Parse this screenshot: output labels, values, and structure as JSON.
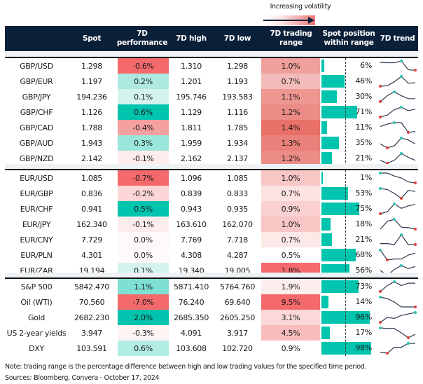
{
  "legend": {
    "label": "Increasing volatility"
  },
  "headers": [
    "",
    "Spot",
    "7D\nperformance",
    "7D high",
    "7D low",
    "7D trading\nrange",
    "Spot position\nwithin range",
    "7D trend"
  ],
  "colors": {
    "header": "#0a1f38",
    "bar": "#00c4ad",
    "max_marker": "#2ec4b0",
    "min_marker": "#e0413a"
  },
  "groups": [
    [
      {
        "name": "GBP/USD",
        "spot": "1.298",
        "perf": "-0.6%",
        "perf_color": "#f46a6c",
        "high": "1.310",
        "low": "1.298",
        "range": "1.0%",
        "range_color": "#f0a09c",
        "pos": 6,
        "pos_label": "6%",
        "trend": [
          0.85,
          0.82,
          0.82,
          1,
          0.1,
          0.05
        ]
      },
      {
        "name": "GBP/EUR",
        "spot": "1.197",
        "perf": "0.2%",
        "perf_color": "#aee9e0",
        "high": "1.201",
        "low": "1.193",
        "range": "0.7%",
        "range_color": "#f3bcba",
        "pos": 46,
        "pos_label": "46%",
        "trend": [
          0,
          0.05,
          0.45,
          1,
          0.3,
          0.35
        ]
      },
      {
        "name": "GBP/JPY",
        "spot": "194.236",
        "perf": "0.1%",
        "perf_color": "#d4f3ef",
        "high": "195.746",
        "low": "193.583",
        "range": "1.1%",
        "range_color": "#ee9690",
        "pos": 30,
        "pos_label": "30%",
        "trend": [
          0,
          0.6,
          1,
          0.6,
          0.3,
          0.3
        ]
      },
      {
        "name": "GBP/CHF",
        "spot": "1.126",
        "perf": "0.6%",
        "perf_color": "#00c4ad",
        "high": "1.129",
        "low": "1.116",
        "range": "1.2%",
        "range_color": "#ec8c86",
        "pos": 71,
        "pos_label": "71%",
        "trend": [
          0,
          0.2,
          0.75,
          1,
          0.65,
          0.8
        ]
      },
      {
        "name": "GBP/CAD",
        "spot": "1.788",
        "perf": "-0.4%",
        "perf_color": "#f5a0a0",
        "high": "1.811",
        "low": "1.785",
        "range": "1.4%",
        "range_color": "#e87068",
        "pos": 11,
        "pos_label": "11%",
        "trend": [
          0.6,
          0.85,
          1,
          1,
          0,
          0.1
        ]
      },
      {
        "name": "GBP/AUD",
        "spot": "1.943",
        "perf": "0.3%",
        "perf_color": "#9ae6da",
        "high": "1.959",
        "low": "1.934",
        "range": "1.3%",
        "range_color": "#ea807a",
        "pos": 35,
        "pos_label": "35%",
        "trend": [
          0.4,
          0,
          0.2,
          1,
          0.8,
          0.4
        ]
      },
      {
        "name": "GBP/NZD",
        "spot": "2.142",
        "perf": "-0.1%",
        "perf_color": "#fdecec",
        "high": "2.162",
        "low": "2.137",
        "range": "1.2%",
        "range_color": "#ec8c86",
        "pos": 21,
        "pos_label": "21%",
        "trend": [
          0.3,
          0,
          0.3,
          1,
          0.6,
          0.3
        ]
      }
    ],
    [
      {
        "name": "EUR/USD",
        "spot": "1.085",
        "perf": "-0.7%",
        "perf_color": "#f46a6c",
        "high": "1.096",
        "low": "1.085",
        "range": "1.0%",
        "range_color": "#f9c6c6",
        "pos": 1,
        "pos_label": "1%",
        "trend": [
          1,
          1,
          0.7,
          0.5,
          0.1,
          0
        ]
      },
      {
        "name": "EUR/GBP",
        "spot": "0.836",
        "perf": "-0.2%",
        "perf_color": "#fcd6d6",
        "high": "0.839",
        "low": "0.833",
        "range": "0.7%",
        "range_color": "#fde2e2",
        "pos": 53,
        "pos_label": "53%",
        "trend": [
          1,
          0.9,
          0.5,
          0,
          0.8,
          0.7
        ]
      },
      {
        "name": "EUR/CHF",
        "spot": "0.941",
        "perf": "0.5%",
        "perf_color": "#00c4ad",
        "high": "0.943",
        "low": "0.935",
        "range": "0.9%",
        "range_color": "#fbd0d0",
        "pos": 75,
        "pos_label": "75%",
        "trend": [
          0,
          0.2,
          1,
          0.55,
          0.8,
          0.95
        ]
      },
      {
        "name": "EUR/JPY",
        "spot": "162.340",
        "perf": "-0.1%",
        "perf_color": "#fdecec",
        "high": "163.610",
        "low": "162.070",
        "range": "1.0%",
        "range_color": "#f9c6c6",
        "pos": 18,
        "pos_label": "18%",
        "trend": [
          0,
          0.8,
          1,
          0.2,
          0.15,
          0
        ]
      },
      {
        "name": "EUR/CNY",
        "spot": "7.729",
        "perf": "0.0%",
        "perf_color": "#fff8f8",
        "high": "7.769",
        "low": "7.718",
        "range": "0.7%",
        "range_color": "#fde8e8",
        "pos": 21,
        "pos_label": "21%",
        "trend": [
          0.1,
          0.1,
          0,
          1,
          0,
          0
        ]
      },
      {
        "name": "EUR/PLN",
        "spot": "4.301",
        "perf": "0.0%",
        "perf_color": "#fffafa",
        "high": "4.308",
        "low": "4.287",
        "range": "0.5%",
        "range_color": "#ffffff",
        "pos": 68,
        "pos_label": "68%",
        "trend": [
          1,
          0,
          0.1,
          0.1,
          0.5,
          0.7
        ]
      },
      {
        "name": "EUR/ZAR",
        "spot": "19.194",
        "perf": "0.1%",
        "perf_color": "#d4f3ef",
        "high": "19.340",
        "low": "19.005",
        "range": "1.8%",
        "range_color": "#f46a6c",
        "pos": 56,
        "pos_label": "56%",
        "trend": [
          0.5,
          0,
          0.6,
          1,
          0.7,
          0.9
        ]
      }
    ],
    [
      {
        "name": "S&P 500",
        "spot": "5842.470",
        "perf": "1.1%",
        "perf_color": "#7ee0d4",
        "high": "5871.410",
        "low": "5764.760",
        "range": "1.9%",
        "range_color": "#fdeeee",
        "pos": 73,
        "pos_label": "73%",
        "trend": [
          0,
          0.6,
          1,
          0.6,
          0.85,
          0.85
        ]
      },
      {
        "name": "Oil (WTI)",
        "spot": "70.560",
        "perf": "-7.0%",
        "perf_color": "#f46a6c",
        "high": "76.240",
        "low": "69.640",
        "range": "9.5%",
        "range_color": "#f46a6c",
        "pos": 14,
        "pos_label": "14%",
        "trend": [
          1,
          0.85,
          0.5,
          0,
          0,
          0
        ]
      },
      {
        "name": "Gold",
        "spot": "2682.230",
        "perf": "2.0%",
        "perf_color": "#00c4ad",
        "high": "2685.350",
        "low": "2605.250",
        "range": "3.1%",
        "range_color": "#fcd8d8",
        "pos": 96,
        "pos_label": "96%",
        "trend": [
          0,
          0.5,
          0.4,
          0.7,
          0.85,
          1
        ]
      },
      {
        "name": "US 2-year yields",
        "spot": "3.947",
        "perf": "-0.3%",
        "perf_color": "#fdf4f4",
        "high": "4.091",
        "low": "3.917",
        "range": "4.5%",
        "range_color": "#f8bcbc",
        "pos": 17,
        "pos_label": "17%",
        "trend": [
          1,
          0.95,
          0.95,
          0.5,
          0,
          0.35
        ]
      },
      {
        "name": "DXY",
        "spot": "103.591",
        "perf": "0.6%",
        "perf_color": "#b2ede5",
        "high": "103.608",
        "low": "102.720",
        "range": "0.9%",
        "range_color": "#ffffff",
        "pos": 98,
        "pos_label": "98%",
        "trend": [
          0.1,
          0,
          0.6,
          0.6,
          1,
          1
        ]
      }
    ]
  ],
  "footer": {
    "note": "Note: trading range is the percentage difference between high and low trading values for the specified time period.",
    "sources": "Sources: Bloomberg, Convera - October 17, 2024"
  }
}
